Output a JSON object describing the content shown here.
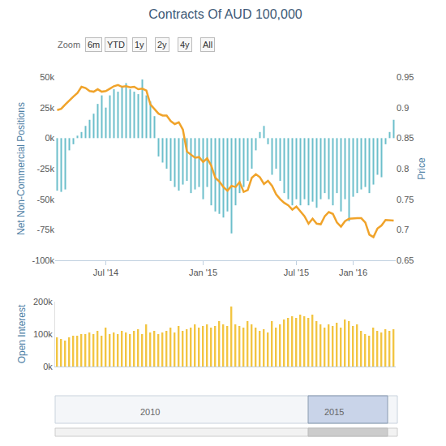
{
  "chart_data": [
    {
      "type": "bar",
      "title": "Contracts Of AUD 100,000",
      "annotations": [
        "Zoom",
        "6m",
        "YTD",
        "1y",
        "2y",
        "4y",
        "All",
        "2010",
        "2015"
      ],
      "categories": [
        null,
        null,
        null,
        null,
        null,
        null,
        null,
        null,
        null,
        null,
        null,
        null,
        "Jul '14",
        null,
        null,
        null,
        null,
        null,
        null,
        null,
        null,
        null,
        null,
        null,
        null,
        null,
        null,
        null,
        null,
        null,
        null,
        null,
        null,
        null,
        null,
        null,
        "Jan '15",
        null,
        null,
        null,
        null,
        null,
        null,
        null,
        null,
        null,
        null,
        null,
        null,
        null,
        null,
        null,
        null,
        null,
        null,
        null,
        null,
        null,
        null,
        "Jul '15",
        null,
        null,
        null,
        null,
        null,
        null,
        null,
        null,
        null,
        null,
        null,
        null,
        null,
        "Jan '16",
        null,
        null,
        null,
        null,
        null,
        null,
        null,
        null,
        null,
        null
      ],
      "ylabel": "Net Non-Commercial Positions",
      "y2label": "Price",
      "ylim": [
        -100000,
        50000
      ],
      "yticks": [
        {
          "value": -100000,
          "label": "-100k"
        },
        {
          "value": -75000,
          "label": "-75k"
        },
        {
          "value": -50000,
          "label": "-50k"
        },
        {
          "value": -25000,
          "label": "-25k"
        },
        {
          "value": 0,
          "label": "0k"
        },
        {
          "value": 25000,
          "label": "25k"
        },
        {
          "value": 50000,
          "label": "50k"
        }
      ],
      "y2lim": [
        0.65,
        0.95
      ],
      "y2ticks": [
        0.65,
        0.7,
        0.75,
        0.8,
        0.85,
        0.9,
        0.95
      ],
      "grid": false,
      "series": [
        {
          "type": "bar",
          "color": "#6cbfcb",
          "values": [
            -43000,
            -44000,
            -42000,
            -10000,
            -5000,
            2000,
            5000,
            10000,
            15000,
            20000,
            28000,
            35000,
            25000,
            35000,
            40000,
            38000,
            42000,
            45000,
            40000,
            38000,
            36000,
            48000,
            35000,
            30000,
            18000,
            -15000,
            -20000,
            -25000,
            -35000,
            -40000,
            -43000,
            -38000,
            -35000,
            -45000,
            -42000,
            -40000,
            -50000,
            -40000,
            -55000,
            -60000,
            -62000,
            -65000,
            -60000,
            -78000,
            -55000,
            -45000,
            -40000,
            -35000,
            -25000,
            -10000,
            5000,
            10000,
            -5000,
            -30000,
            -25000,
            -35000,
            -45000,
            -50000,
            -55000,
            -50000,
            -55000,
            -50000,
            -55000,
            -52000,
            -57000,
            -50000,
            -45000,
            -50000,
            -55000,
            -45000,
            -60000,
            -50000,
            -68000,
            -48000,
            -45000,
            -42000,
            -40000,
            -45000,
            -38000,
            -30000,
            -32000,
            -5000,
            5000,
            15000
          ]
        },
        {
          "type": "line",
          "color": "#f0a32a",
          "axis": "y2",
          "values": [
            0.896,
            0.898,
            0.905,
            0.912,
            0.918,
            0.924,
            0.934,
            0.932,
            0.927,
            0.926,
            0.93,
            0.926,
            0.927,
            0.931,
            0.935,
            0.937,
            0.934,
            0.935,
            0.933,
            0.934,
            0.93,
            0.931,
            0.928,
            0.905,
            0.897,
            0.89,
            0.887,
            0.887,
            0.878,
            0.873,
            0.876,
            0.864,
            0.828,
            0.823,
            0.818,
            0.819,
            0.811,
            0.817,
            0.805,
            0.785,
            0.779,
            0.77,
            0.764,
            0.772,
            0.77,
            0.778,
            0.762,
            0.765,
            0.785,
            0.791,
            0.786,
            0.775,
            0.78,
            0.772,
            0.758,
            0.75,
            0.744,
            0.74,
            0.733,
            0.738,
            0.73,
            0.722,
            0.71,
            0.718,
            0.71,
            0.709,
            0.722,
            0.729,
            0.726,
            0.712,
            0.705,
            0.714,
            0.718,
            0.719,
            0.719,
            0.719,
            0.712,
            0.692,
            0.688,
            0.702,
            0.707,
            0.716,
            0.716,
            0.715
          ]
        }
      ]
    },
    {
      "type": "bar",
      "categories": [
        null,
        null,
        null,
        null,
        null,
        null,
        null,
        null,
        null,
        null,
        null,
        null,
        "Jul '14",
        null,
        null,
        null,
        null,
        null,
        null,
        null,
        null,
        null,
        null,
        null,
        null,
        null,
        null,
        null,
        null,
        null,
        null,
        null,
        null,
        null,
        null,
        null,
        "Jan '15",
        null,
        null,
        null,
        null,
        null,
        null,
        null,
        null,
        null,
        null,
        null,
        null,
        null,
        null,
        null,
        null,
        null,
        null,
        null,
        null,
        null,
        null,
        "Jul '15",
        null,
        null,
        null,
        null,
        null,
        null,
        null,
        null,
        null,
        null,
        null,
        null,
        null,
        "Jan '16",
        null,
        null,
        null,
        null,
        null,
        null,
        null,
        null,
        null,
        null
      ],
      "ylabel": "Open Interest",
      "ylim": [
        0,
        200000
      ],
      "yticks": [
        {
          "value": 0,
          "label": "0k"
        },
        {
          "value": 100000,
          "label": "100k"
        },
        {
          "value": 200000,
          "label": "200k"
        }
      ],
      "tick_labels": "y",
      "grid": false,
      "color": "#f2c542",
      "values": [
        90000,
        85000,
        80000,
        90000,
        95000,
        95000,
        100000,
        100000,
        105000,
        100000,
        110000,
        95000,
        120000,
        100000,
        105000,
        100000,
        110000,
        105000,
        100000,
        110000,
        115000,
        100000,
        130000,
        105000,
        110000,
        100000,
        105000,
        110000,
        120000,
        105000,
        125000,
        110000,
        115000,
        120000,
        130000,
        120000,
        125000,
        130000,
        120000,
        125000,
        140000,
        130000,
        125000,
        185000,
        130000,
        125000,
        120000,
        140000,
        130000,
        120000,
        110000,
        115000,
        105000,
        140000,
        120000,
        130000,
        145000,
        150000,
        155000,
        150000,
        160000,
        155000,
        150000,
        160000,
        140000,
        130000,
        120000,
        130000,
        125000,
        135000,
        120000,
        145000,
        140000,
        125000,
        130000,
        110000,
        100000,
        95000,
        120000,
        110000,
        105000,
        115000,
        110000,
        115000
      ]
    }
  ]
}
